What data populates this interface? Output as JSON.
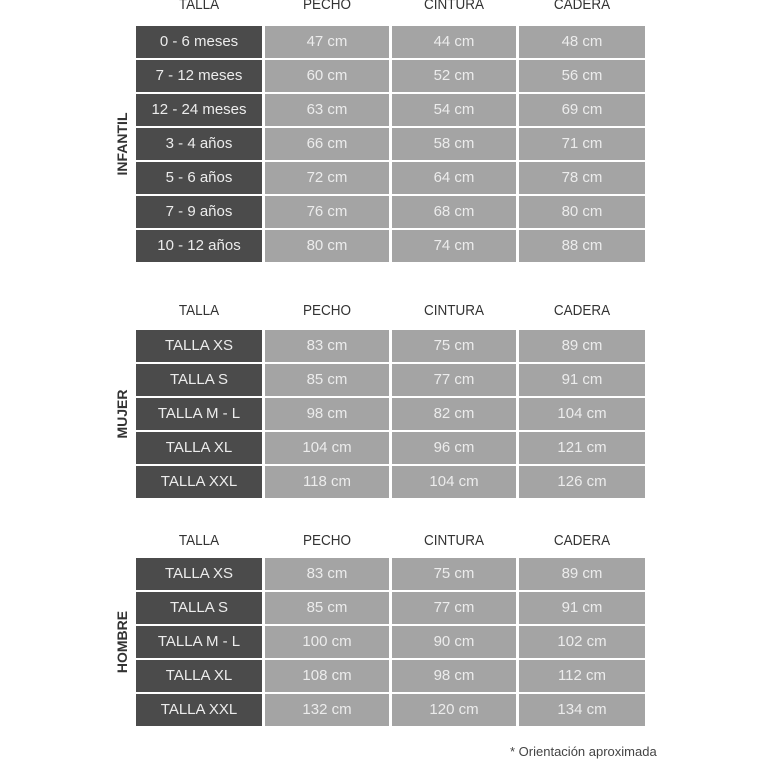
{
  "headers": [
    "TALLA",
    "PECHO",
    "CINTURA",
    "CADERA"
  ],
  "sections": [
    {
      "label": "INFANTIL",
      "rows": [
        [
          "0 - 6 meses",
          "47 cm",
          "44 cm",
          "48 cm"
        ],
        [
          "7 - 12 meses",
          "60 cm",
          "52 cm",
          "56 cm"
        ],
        [
          "12 - 24 meses",
          "63 cm",
          "54 cm",
          "69 cm"
        ],
        [
          "3 - 4 años",
          "66 cm",
          "58 cm",
          "71 cm"
        ],
        [
          "5 - 6 años",
          "72 cm",
          "64 cm",
          "78 cm"
        ],
        [
          "7 - 9 años",
          "76 cm",
          "68 cm",
          "80 cm"
        ],
        [
          "10 - 12 años",
          "80 cm",
          "74 cm",
          "88 cm"
        ]
      ]
    },
    {
      "label": "MUJER",
      "rows": [
        [
          "TALLA XS",
          "83 cm",
          "75 cm",
          "89 cm"
        ],
        [
          "TALLA S",
          "85 cm",
          "77 cm",
          "91 cm"
        ],
        [
          "TALLA M - L",
          "98 cm",
          "82 cm",
          "104 cm"
        ],
        [
          "TALLA XL",
          "104 cm",
          "96 cm",
          "121 cm"
        ],
        [
          "TALLA XXL",
          "118 cm",
          "104 cm",
          "126 cm"
        ]
      ]
    },
    {
      "label": "HOMBRE",
      "rows": [
        [
          "TALLA XS",
          "83 cm",
          "75 cm",
          "89 cm"
        ],
        [
          "TALLA S",
          "85 cm",
          "77 cm",
          "91 cm"
        ],
        [
          "TALLA M - L",
          "100 cm",
          "90 cm",
          "102 cm"
        ],
        [
          "TALLA XL",
          "108 cm",
          "98 cm",
          "112 cm"
        ],
        [
          "TALLA XXL",
          "132 cm",
          "120 cm",
          "134 cm"
        ]
      ]
    }
  ],
  "footnote": "* Orientación aproximada",
  "colors": {
    "size_cell": "#4b4b4b",
    "value_cell": "#a4a4a4",
    "cell_text": "#ececec",
    "header_text": "#333333"
  }
}
